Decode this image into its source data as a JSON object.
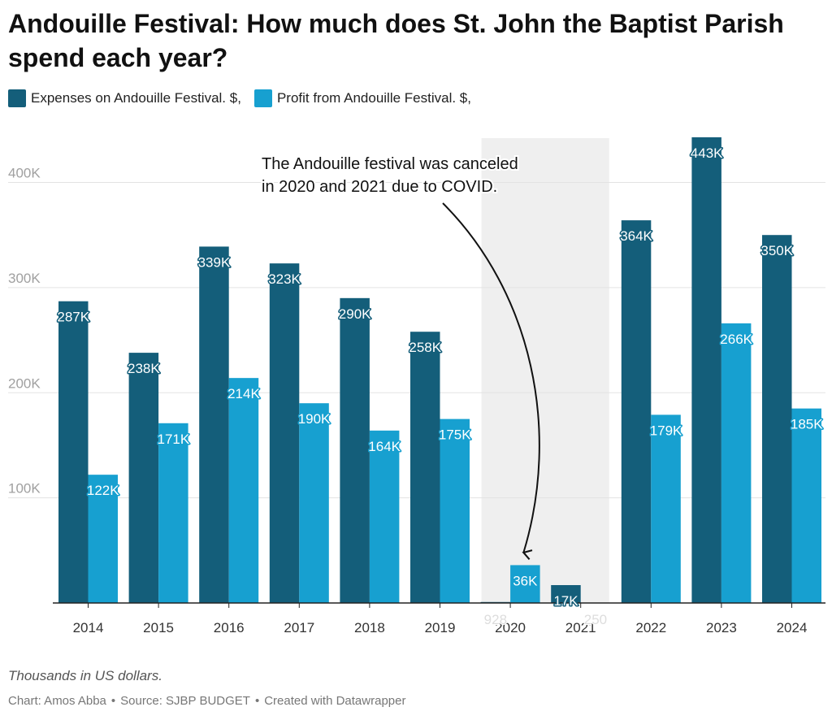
{
  "title": "Andouille Festival: How much does St. John the Baptist Parish spend each year?",
  "notes": "Thousands in US dollars.",
  "footer": {
    "chart_by": "Chart: Amos Abba",
    "source": "Source: SJBP BUDGET",
    "created_with": "Created with Datawrapper",
    "separator": "•"
  },
  "colors": {
    "expenses": "#145e7a",
    "profit": "#17a0d0",
    "highlight_band": "#efefef",
    "gridline": "#e3e3e3",
    "axis": "#222222",
    "tick_label": "#a0a0a0"
  },
  "chart_data": {
    "type": "bar",
    "categories": [
      "2014",
      "2015",
      "2016",
      "2017",
      "2018",
      "2019",
      "2020",
      "2021",
      "2022",
      "2023",
      "2024"
    ],
    "series": [
      {
        "name": "Expenses on Andouille Festival. $,",
        "values": [
          287,
          238,
          339,
          323,
          290,
          258,
          0.928,
          17,
          364,
          443,
          350
        ],
        "labels": [
          "287K",
          "238K",
          "339K",
          "323K",
          "290K",
          "258K",
          "928",
          "17K",
          "364K",
          "443K",
          "350K"
        ]
      },
      {
        "name": "Profit from Andouille Festival. $,",
        "values": [
          122,
          171,
          214,
          190,
          164,
          175,
          36,
          0.25,
          179,
          266,
          185
        ],
        "labels": [
          "122K",
          "171K",
          "214K",
          "190K",
          "164K",
          "175K",
          "36K",
          "250",
          "179K",
          "266K",
          "185K"
        ]
      }
    ],
    "yticks": [
      100,
      200,
      300,
      400
    ],
    "ytick_labels": [
      "100K",
      "200K",
      "300K",
      "400K"
    ],
    "ylim": [
      0,
      443
    ],
    "grid": true,
    "legend_position": "top-left",
    "highlight_categories": [
      "2020",
      "2021"
    ],
    "annotation": {
      "lines": [
        "The Andouille festival was canceled",
        "in 2020 and 2021 due to COVID."
      ],
      "points_to_category": "2020"
    }
  }
}
